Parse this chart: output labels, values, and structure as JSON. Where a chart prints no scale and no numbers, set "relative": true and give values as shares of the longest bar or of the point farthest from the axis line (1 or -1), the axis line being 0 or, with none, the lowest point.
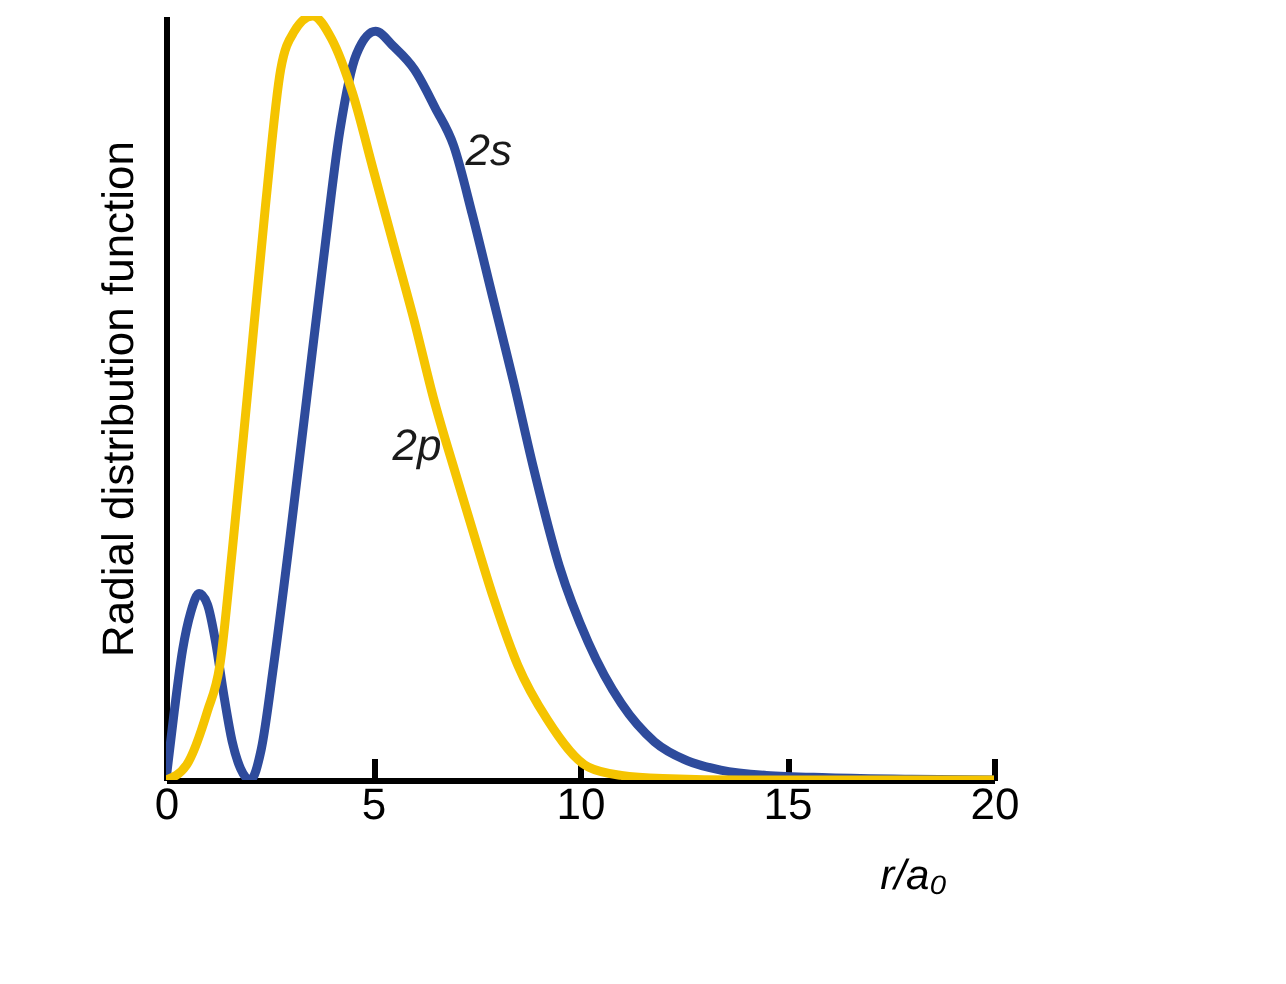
{
  "chart_data": {
    "type": "line",
    "relative": true,
    "xlabel": "r/a₀",
    "ylabel": "Radial distribution function",
    "xlim": [
      0,
      20
    ],
    "xticks": [
      0,
      5,
      10,
      15,
      20
    ],
    "grid": false,
    "marker": "none",
    "line_style": "solid",
    "series": [
      {
        "name": "2s",
        "color": "#2e4b9c",
        "x": [
          0,
          0.2,
          0.4,
          0.6,
          0.8,
          1.0,
          1.2,
          1.4,
          1.6,
          1.8,
          2.04,
          2.3,
          2.6,
          3.0,
          3.4,
          3.8,
          4.2,
          4.6,
          5.06,
          5.5,
          6.0,
          6.5,
          6.95,
          7.4,
          7.9,
          8.4,
          8.87,
          9.5,
          10.2,
          11.0,
          11.8,
          12.6,
          13.4,
          14.5,
          16,
          18,
          20
        ],
        "values": [
          0,
          0.09,
          0.17,
          0.22,
          0.244,
          0.23,
          0.18,
          0.11,
          0.05,
          0.015,
          0,
          0.04,
          0.15,
          0.32,
          0.5,
          0.68,
          0.85,
          0.95,
          0.98,
          0.96,
          0.93,
          0.88,
          0.83,
          0.74,
          0.63,
          0.52,
          0.41,
          0.28,
          0.18,
          0.1,
          0.05,
          0.025,
          0.013,
          0.006,
          0.003,
          0.001,
          0
        ]
      },
      {
        "name": "2p",
        "color": "#f5c400",
        "x": [
          0,
          0.5,
          1.0,
          1.3,
          1.6,
          1.96,
          2.4,
          2.77,
          3.1,
          3.54,
          4.0,
          4.5,
          5.0,
          5.5,
          6.0,
          6.46,
          7.0,
          7.5,
          7.9,
          8.5,
          9.2,
          10.2,
          11,
          12,
          14,
          20
        ],
        "values": [
          0,
          0.02,
          0.09,
          0.15,
          0.3,
          0.5,
          0.75,
          0.93,
          0.98,
          1,
          0.97,
          0.9,
          0.8,
          0.7,
          0.6,
          0.5,
          0.4,
          0.31,
          0.24,
          0.15,
          0.08,
          0.017,
          0.006,
          0.002,
          0,
          0
        ]
      }
    ]
  }
}
